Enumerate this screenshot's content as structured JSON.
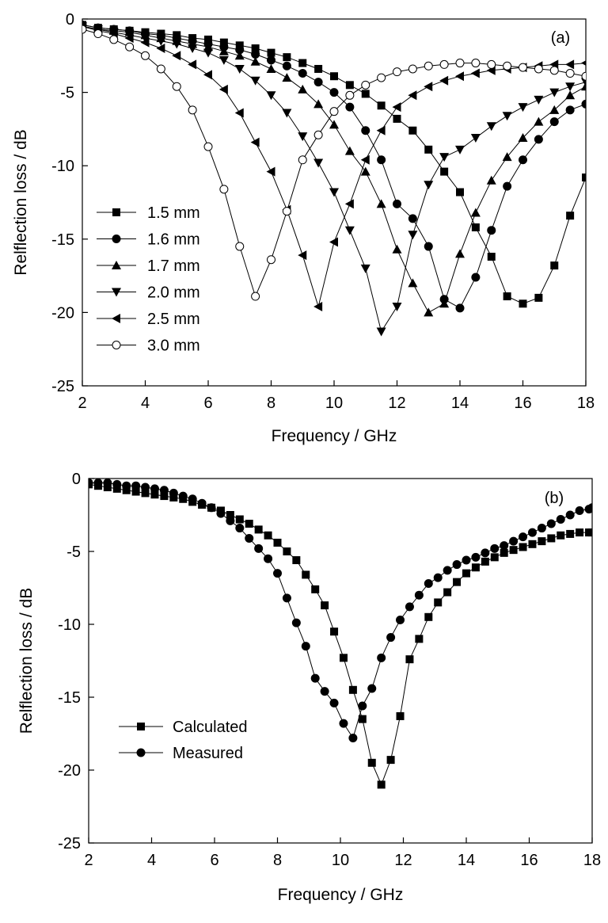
{
  "chart_data": [
    {
      "type": "line",
      "panel_label": "(a)",
      "xlabel": "Frequency / GHz",
      "ylabel": "Relflection loss / dB",
      "xlim": [
        2,
        18
      ],
      "ylim": [
        -25,
        0
      ],
      "xticks": [
        2,
        4,
        6,
        8,
        10,
        12,
        14,
        16,
        18
      ],
      "yticks": [
        0,
        -5,
        -10,
        -15,
        -20,
        -25
      ],
      "grid": false,
      "legend_position": "left",
      "series": [
        {
          "name": "1.5 mm",
          "marker": "square-filled",
          "x": [
            2.0,
            2.5,
            3.0,
            3.5,
            4.0,
            4.5,
            5.0,
            5.5,
            6.0,
            6.5,
            7.0,
            7.5,
            8.0,
            8.5,
            9.0,
            9.5,
            10.0,
            10.5,
            11.0,
            11.5,
            12.0,
            12.5,
            13.0,
            13.5,
            14.0,
            14.5,
            15.0,
            15.5,
            16.0,
            16.5,
            17.0,
            17.5,
            18.0
          ],
          "y": [
            -0.4,
            -0.6,
            -0.7,
            -0.8,
            -0.9,
            -1.0,
            -1.1,
            -1.3,
            -1.4,
            -1.6,
            -1.8,
            -2.0,
            -2.3,
            -2.6,
            -3.0,
            -3.4,
            -3.9,
            -4.5,
            -5.1,
            -5.9,
            -6.8,
            -7.6,
            -8.9,
            -10.4,
            -11.8,
            -14.2,
            -16.2,
            -18.9,
            -19.4,
            -19.0,
            -16.8,
            -13.4,
            -10.8
          ]
        },
        {
          "name": "1.6 mm",
          "marker": "circle-filled",
          "x": [
            2.0,
            2.5,
            3.0,
            3.5,
            4.0,
            4.5,
            5.0,
            5.5,
            6.0,
            6.5,
            7.0,
            7.5,
            8.0,
            8.5,
            9.0,
            9.5,
            10.0,
            10.5,
            11.0,
            11.5,
            12.0,
            12.5,
            13.0,
            13.5,
            14.0,
            14.5,
            15.0,
            15.5,
            16.0,
            16.5,
            17.0,
            17.5,
            18.0
          ],
          "y": [
            -0.4,
            -0.6,
            -0.7,
            -0.8,
            -1.0,
            -1.1,
            -1.3,
            -1.5,
            -1.7,
            -1.9,
            -2.1,
            -2.4,
            -2.8,
            -3.2,
            -3.7,
            -4.3,
            -5.0,
            -6.0,
            -7.6,
            -9.6,
            -12.6,
            -13.6,
            -15.5,
            -19.1,
            -19.7,
            -17.6,
            -14.4,
            -11.4,
            -9.6,
            -8.2,
            -7.0,
            -6.2,
            -5.8
          ]
        },
        {
          "name": "1.7 mm",
          "marker": "triangle-up-filled",
          "x": [
            2.0,
            2.5,
            3.0,
            3.5,
            4.0,
            4.5,
            5.0,
            5.5,
            6.0,
            6.5,
            7.0,
            7.5,
            8.0,
            8.5,
            9.0,
            9.5,
            10.0,
            10.5,
            11.0,
            11.5,
            12.0,
            12.5,
            13.0,
            13.5,
            14.0,
            14.5,
            15.0,
            15.5,
            16.0,
            16.5,
            17.0,
            17.5,
            18.0
          ],
          "y": [
            -0.5,
            -0.7,
            -0.8,
            -0.9,
            -1.1,
            -1.3,
            -1.5,
            -1.7,
            -1.9,
            -2.2,
            -2.5,
            -2.9,
            -3.4,
            -4.0,
            -4.8,
            -5.8,
            -7.2,
            -9.0,
            -10.4,
            -12.6,
            -15.7,
            -18.0,
            -20.0,
            -19.4,
            -16.0,
            -13.2,
            -11.0,
            -9.4,
            -8.1,
            -7.0,
            -6.2,
            -5.2,
            -4.6
          ]
        },
        {
          "name": "2.0 mm",
          "marker": "triangle-down-filled",
          "x": [
            2.0,
            2.5,
            3.0,
            3.5,
            4.0,
            4.5,
            5.0,
            5.5,
            6.0,
            6.5,
            7.0,
            7.5,
            8.0,
            8.5,
            9.0,
            9.5,
            10.0,
            10.5,
            11.0,
            11.5,
            12.0,
            12.5,
            13.0,
            13.5,
            14.0,
            14.5,
            15.0,
            15.5,
            16.0,
            16.5,
            17.0,
            17.5,
            18.0
          ],
          "y": [
            -0.5,
            -0.7,
            -0.9,
            -1.1,
            -1.3,
            -1.5,
            -1.7,
            -2.0,
            -2.3,
            -2.8,
            -3.4,
            -4.2,
            -5.2,
            -6.4,
            -8.0,
            -9.8,
            -11.8,
            -14.4,
            -17.0,
            -21.3,
            -19.6,
            -14.7,
            -11.3,
            -9.4,
            -8.9,
            -8.1,
            -7.3,
            -6.6,
            -6.0,
            -5.5,
            -5.0,
            -4.6,
            -4.3
          ]
        },
        {
          "name": "2.5 mm",
          "marker": "triangle-left-filled",
          "x": [
            2.0,
            2.5,
            3.0,
            3.5,
            4.0,
            4.5,
            5.0,
            5.5,
            6.0,
            6.5,
            7.0,
            7.5,
            8.0,
            8.5,
            9.0,
            9.5,
            10.0,
            10.5,
            11.0,
            11.5,
            12.0,
            12.5,
            13.0,
            13.5,
            14.0,
            14.5,
            15.0,
            15.5,
            16.0,
            16.5,
            17.0,
            17.5,
            18.0
          ],
          "y": [
            -0.5,
            -0.8,
            -1.0,
            -1.3,
            -1.6,
            -2.0,
            -2.5,
            -3.1,
            -3.8,
            -4.8,
            -6.4,
            -8.4,
            -10.4,
            -13.0,
            -16.1,
            -19.6,
            -15.2,
            -12.6,
            -9.6,
            -7.6,
            -6.0,
            -5.2,
            -4.6,
            -4.2,
            -3.9,
            -3.7,
            -3.5,
            -3.4,
            -3.3,
            -3.2,
            -3.1,
            -3.1,
            -3.0
          ]
        },
        {
          "name": "3.0 mm",
          "marker": "circle-open",
          "x": [
            2.0,
            2.5,
            3.0,
            3.5,
            4.0,
            4.5,
            5.0,
            5.5,
            6.0,
            6.5,
            7.0,
            7.5,
            8.0,
            8.5,
            9.0,
            9.5,
            10.0,
            10.5,
            11.0,
            11.5,
            12.0,
            12.5,
            13.0,
            13.5,
            14.0,
            14.5,
            15.0,
            15.5,
            16.0,
            16.5,
            17.0,
            17.5,
            18.0
          ],
          "y": [
            -0.7,
            -1.0,
            -1.4,
            -1.9,
            -2.5,
            -3.4,
            -4.6,
            -6.2,
            -8.7,
            -11.6,
            -15.5,
            -18.9,
            -16.4,
            -13.1,
            -9.6,
            -7.9,
            -6.3,
            -5.2,
            -4.5,
            -4.0,
            -3.6,
            -3.4,
            -3.2,
            -3.1,
            -3.0,
            -3.0,
            -3.1,
            -3.2,
            -3.3,
            -3.4,
            -3.5,
            -3.7,
            -3.9
          ]
        }
      ]
    },
    {
      "type": "line",
      "panel_label": "(b)",
      "xlabel": "Frequency / GHz",
      "ylabel": "Relflection loss / dB",
      "xlim": [
        2,
        18
      ],
      "ylim": [
        -25,
        0
      ],
      "xticks": [
        2,
        4,
        6,
        8,
        10,
        12,
        14,
        16,
        18
      ],
      "yticks": [
        0,
        -5,
        -10,
        -15,
        -20,
        -25
      ],
      "grid": false,
      "legend_position": "bottom-left",
      "series": [
        {
          "name": "Calculated",
          "marker": "square-filled",
          "x": [
            2.0,
            2.3,
            2.6,
            2.9,
            3.2,
            3.5,
            3.8,
            4.1,
            4.4,
            4.7,
            5.0,
            5.3,
            5.6,
            5.9,
            6.2,
            6.5,
            6.8,
            7.1,
            7.4,
            7.7,
            8.0,
            8.3,
            8.6,
            8.9,
            9.2,
            9.5,
            9.8,
            10.1,
            10.4,
            10.7,
            11.0,
            11.3,
            11.6,
            11.9,
            12.2,
            12.5,
            12.8,
            13.1,
            13.4,
            13.7,
            14.0,
            14.3,
            14.6,
            14.9,
            15.2,
            15.5,
            15.8,
            16.1,
            16.4,
            16.7,
            17.0,
            17.3,
            17.6,
            17.9,
            18.0
          ],
          "y": [
            -0.4,
            -0.5,
            -0.6,
            -0.7,
            -0.8,
            -0.9,
            -1.0,
            -1.1,
            -1.2,
            -1.3,
            -1.4,
            -1.6,
            -1.8,
            -2.0,
            -2.2,
            -2.5,
            -2.8,
            -3.1,
            -3.5,
            -3.9,
            -4.4,
            -5.0,
            -5.6,
            -6.6,
            -7.6,
            -8.7,
            -10.5,
            -12.3,
            -14.5,
            -16.5,
            -19.5,
            -21.0,
            -19.3,
            -16.3,
            -12.4,
            -11.0,
            -9.5,
            -8.5,
            -7.8,
            -7.1,
            -6.5,
            -6.1,
            -5.7,
            -5.4,
            -5.1,
            -4.9,
            -4.7,
            -4.5,
            -4.3,
            -4.1,
            -3.9,
            -3.8,
            -3.7,
            -3.7,
            -3.7
          ]
        },
        {
          "name": "Measured",
          "marker": "circle-filled",
          "x": [
            2.0,
            2.3,
            2.6,
            2.9,
            3.2,
            3.5,
            3.8,
            4.1,
            4.4,
            4.7,
            5.0,
            5.3,
            5.6,
            5.9,
            6.2,
            6.5,
            6.8,
            7.1,
            7.4,
            7.7,
            8.0,
            8.3,
            8.6,
            8.9,
            9.2,
            9.5,
            9.8,
            10.1,
            10.4,
            10.7,
            11.0,
            11.3,
            11.6,
            11.9,
            12.2,
            12.5,
            12.8,
            13.1,
            13.4,
            13.7,
            14.0,
            14.3,
            14.6,
            14.9,
            15.2,
            15.5,
            15.8,
            16.1,
            16.4,
            16.7,
            17.0,
            17.3,
            17.6,
            17.9,
            18.0
          ],
          "y": [
            -0.3,
            -0.3,
            -0.3,
            -0.4,
            -0.5,
            -0.5,
            -0.6,
            -0.7,
            -0.8,
            -1.0,
            -1.2,
            -1.4,
            -1.7,
            -2.0,
            -2.4,
            -2.9,
            -3.4,
            -4.1,
            -4.8,
            -5.5,
            -6.5,
            -8.2,
            -9.9,
            -11.5,
            -13.7,
            -14.6,
            -15.4,
            -16.8,
            -17.8,
            -15.6,
            -14.4,
            -12.3,
            -10.9,
            -9.7,
            -8.8,
            -8.0,
            -7.2,
            -6.8,
            -6.3,
            -5.9,
            -5.6,
            -5.4,
            -5.1,
            -4.8,
            -4.6,
            -4.3,
            -4.0,
            -3.7,
            -3.4,
            -3.1,
            -2.8,
            -2.5,
            -2.2,
            -2.1,
            -2.0
          ]
        }
      ]
    }
  ]
}
